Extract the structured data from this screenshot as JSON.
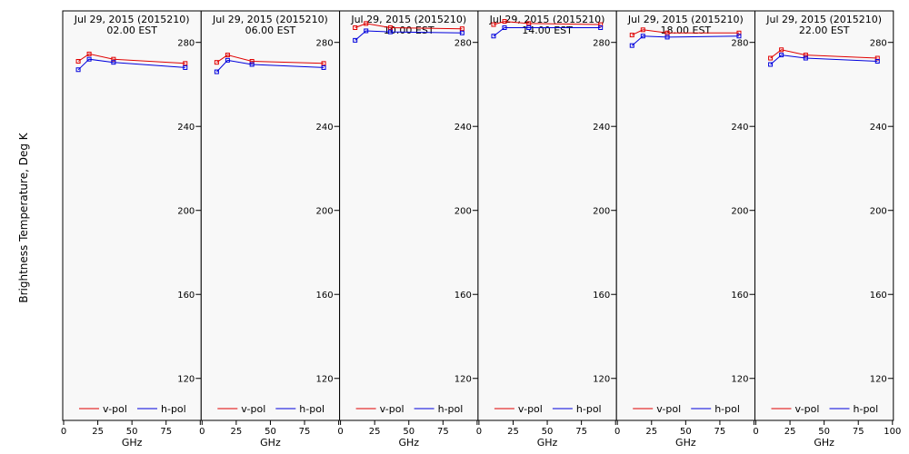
{
  "ylabel": "Brightness Temperature, Deg K",
  "xlabel": "GHz",
  "chart_data": {
    "type": "line",
    "xlim": [
      0,
      100
    ],
    "ylim": [
      100,
      295
    ],
    "x_ticks": [
      0,
      25,
      50,
      75,
      100
    ],
    "y_ticks": [
      120,
      160,
      200,
      240,
      280
    ],
    "legend": [
      "v-pol",
      "h-pol"
    ],
    "legend_placement": "bottom",
    "colors": {
      "v-pol": "#e00000",
      "h-pol": "#0000dd"
    },
    "x": [
      10.7,
      18.7,
      36.5,
      89.0
    ],
    "panels": [
      {
        "date": "Jul 29, 2015 (2015210)",
        "time": "02.00 EST",
        "series": [
          {
            "name": "v-pol",
            "values": [
              271,
              274.5,
              272,
              270
            ]
          },
          {
            "name": "h-pol",
            "values": [
              267,
              272,
              270.5,
              268
            ]
          }
        ]
      },
      {
        "date": "Jul 29, 2015 (2015210)",
        "time": "06.00 EST",
        "series": [
          {
            "name": "v-pol",
            "values": [
              270.5,
              274,
              271,
              270
            ]
          },
          {
            "name": "h-pol",
            "values": [
              266,
              271.5,
              269.5,
              268
            ]
          }
        ]
      },
      {
        "date": "Jul 29, 2015 (2015210)",
        "time": "10.00 EST",
        "series": [
          {
            "name": "v-pol",
            "values": [
              287,
              289,
              287,
              286.5
            ]
          },
          {
            "name": "h-pol",
            "values": [
              281,
              285.5,
              285,
              284.5
            ]
          }
        ]
      },
      {
        "date": "Jul 29, 2015 (2015210)",
        "time": "14.00 EST",
        "series": [
          {
            "name": "v-pol",
            "values": [
              288.5,
              290,
              289,
              288.5
            ]
          },
          {
            "name": "h-pol",
            "values": [
              283,
              287,
              287,
              287
            ]
          }
        ]
      },
      {
        "date": "Jul 29, 2015 (2015210)",
        "time": "18.00 EST",
        "series": [
          {
            "name": "v-pol",
            "values": [
              283.5,
              286,
              284.5,
              284.5
            ]
          },
          {
            "name": "h-pol",
            "values": [
              278.5,
              283,
              282.5,
              283
            ]
          }
        ]
      },
      {
        "date": "Jul 29, 2015 (2015210)",
        "time": "22.00 EST",
        "series": [
          {
            "name": "v-pol",
            "values": [
              272.5,
              276.5,
              274,
              272.5
            ]
          },
          {
            "name": "h-pol",
            "values": [
              269.5,
              274,
              272.5,
              271
            ]
          }
        ]
      }
    ]
  }
}
